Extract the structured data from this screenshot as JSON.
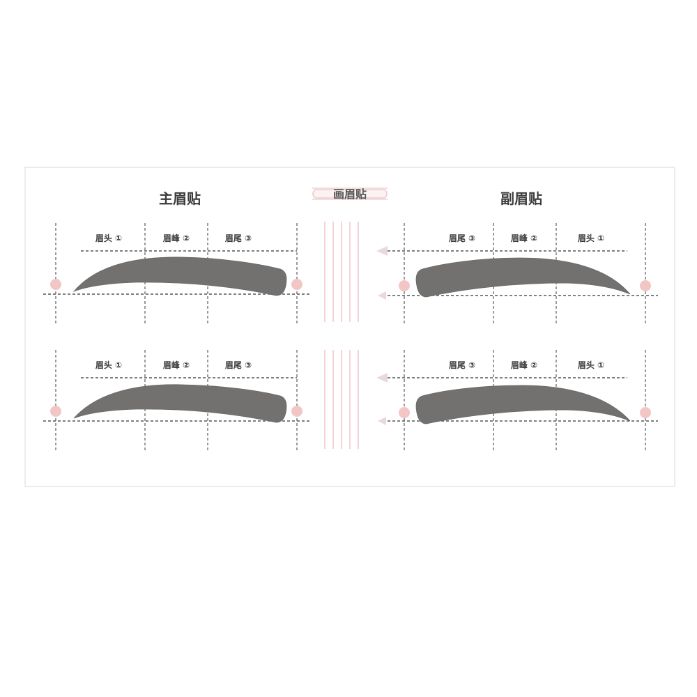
{
  "card": {
    "left_title": "主眉贴",
    "center_badge": "画眉贴",
    "right_title": "副眉贴"
  },
  "stencils": [
    {
      "id": "top-left",
      "side": "left",
      "labels": [
        "眉头 ①",
        "眉峰 ②",
        "眉尾 ③"
      ]
    },
    {
      "id": "top-right",
      "side": "right",
      "labels": [
        "眉尾 ③",
        "眉峰 ②",
        "眉头 ①"
      ]
    },
    {
      "id": "bottom-left",
      "side": "left",
      "labels": [
        "眉头 ①",
        "眉峰 ②",
        "眉尾 ③"
      ]
    },
    {
      "id": "bottom-right",
      "side": "right",
      "labels": [
        "眉尾 ③",
        "眉峰 ②",
        "眉头 ①"
      ]
    }
  ],
  "colors": {
    "brow": "#727170",
    "marker_dot": "#f3c6c6",
    "ruler": "#e7a9a9",
    "card_border": "#e6e6e6"
  }
}
